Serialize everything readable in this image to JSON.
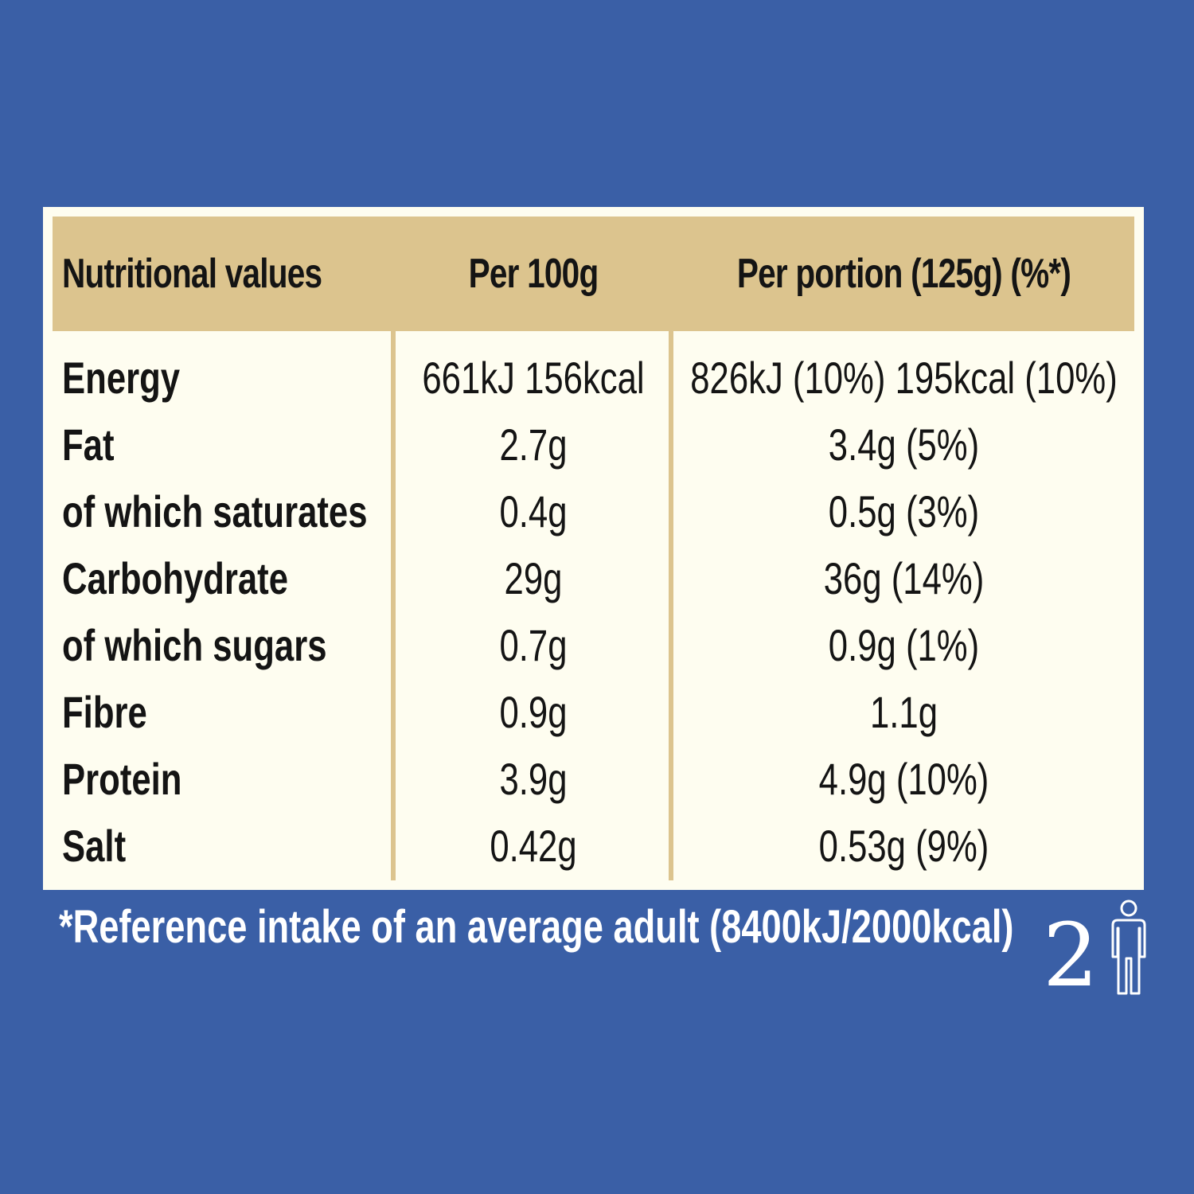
{
  "table": {
    "headers": [
      "Nutritional values",
      "Per 100g",
      "Per portion (125g) (%*)"
    ],
    "rows": [
      {
        "nutrient": "Energy",
        "per_100g": "661kJ 156kcal",
        "per_portion": "826kJ (10%) 195kcal (10%)"
      },
      {
        "nutrient": "Fat",
        "per_100g": "2.7g",
        "per_portion": "3.4g (5%)"
      },
      {
        "nutrient": "of which saturates",
        "per_100g": "0.4g",
        "per_portion": "0.5g (3%)"
      },
      {
        "nutrient": "Carbohydrate",
        "per_100g": "29g",
        "per_portion": "36g (14%)"
      },
      {
        "nutrient": "of which sugars",
        "per_100g": "0.7g",
        "per_portion": "0.9g (1%)"
      },
      {
        "nutrient": "Fibre",
        "per_100g": "0.9g",
        "per_portion": "1.1g"
      },
      {
        "nutrient": "Protein",
        "per_100g": "3.9g",
        "per_portion": "4.9g (10%)"
      },
      {
        "nutrient": "Salt",
        "per_100g": "0.42g",
        "per_portion": "0.53g (9%)"
      }
    ]
  },
  "footnote": "*Reference intake of an average adult (8400kJ/2000kcal)",
  "portions": {
    "count": "2",
    "icon": "person-icon"
  },
  "colors": {
    "background": "#3a5fa6",
    "panel": "#fefdf0",
    "header": "#dcc48e",
    "text": "#141414",
    "footnote_text": "#ffffff"
  }
}
